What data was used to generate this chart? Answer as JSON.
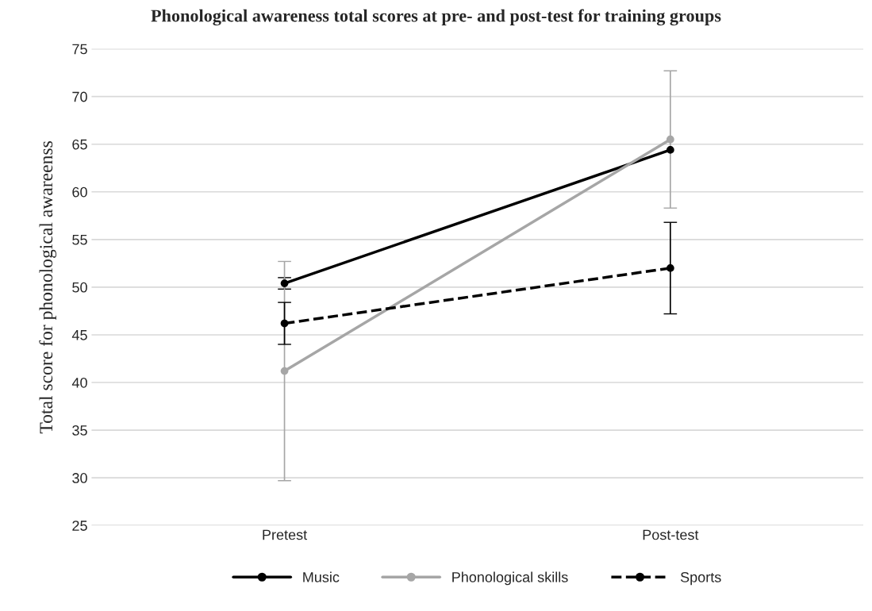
{
  "chart_data": {
    "type": "line",
    "title": "Phonological awareness total scores at pre- and post-test for training groups",
    "ylabel": "Total score for phonological awareenss",
    "categories": [
      "Pretest",
      "Post-test"
    ],
    "series": [
      {
        "name": "Music",
        "color": "#000000",
        "values": [
          50.4,
          64.4
        ],
        "errors": [
          0.6,
          null
        ],
        "line_style": "solid"
      },
      {
        "name": "Phonological skills",
        "color": "#a6a6a6",
        "values": [
          41.2,
          65.5
        ],
        "errors": [
          11.5,
          7.2
        ],
        "line_style": "solid"
      },
      {
        "name": "Sports",
        "color": "#000000",
        "values": [
          46.2,
          52.0
        ],
        "errors": [
          2.2,
          4.8
        ],
        "line_style": "dashed"
      }
    ],
    "ylim": [
      25,
      75
    ],
    "yticks": [
      25,
      30,
      35,
      40,
      45,
      50,
      55,
      60,
      65,
      70,
      75
    ],
    "grid": "y",
    "legend": "bottom",
    "marker": "circle"
  }
}
